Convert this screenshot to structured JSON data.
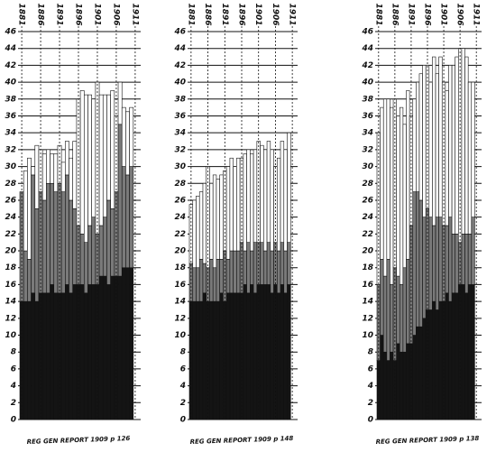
{
  "chart_data": [
    {
      "type": "bar",
      "stacked": true,
      "caption": "REG GEN REPORT 1909 p 126",
      "categories": [
        "1881",
        null,
        null,
        null,
        null,
        "1886",
        null,
        null,
        null,
        null,
        "1891",
        null,
        null,
        null,
        null,
        "1896",
        null,
        null,
        null,
        null,
        "1901",
        null,
        null,
        null,
        null,
        "1906",
        null,
        null,
        null,
        null,
        "1911"
      ],
      "ylim": [
        0,
        46
      ],
      "yticks": [
        0,
        2,
        4,
        6,
        8,
        10,
        12,
        14,
        16,
        18,
        20,
        22,
        24,
        26,
        28,
        30,
        32,
        34,
        36,
        38,
        40,
        42,
        44,
        46
      ],
      "grid": true,
      "series": [
        {
          "color": "#141414",
          "values": [
            14,
            14,
            14,
            15,
            14,
            15,
            15,
            15,
            16,
            15,
            15,
            15,
            16,
            15,
            16,
            16,
            16,
            15,
            16,
            16,
            16,
            17,
            17,
            16,
            17,
            17,
            17,
            18,
            18,
            18,
            null
          ]
        },
        {
          "color": "#7a7a7a",
          "values": [
            13,
            6,
            5,
            14,
            11,
            12,
            11,
            13,
            12,
            12,
            13,
            12,
            13,
            11,
            9,
            7,
            6,
            6,
            7,
            8,
            6,
            6,
            7,
            10,
            8,
            10,
            18,
            12,
            11,
            12,
            null
          ]
        },
        {
          "color": "#ffffff",
          "values": [
            0,
            9.5,
            12,
            1,
            7.5,
            5,
            5.5,
            4,
            3.5,
            4.5,
            4.5,
            3.5,
            4,
            5,
            8,
            15,
            17,
            17.5,
            15.5,
            14,
            18,
            15.5,
            14.5,
            12.5,
            14,
            9,
            5,
            7,
            7.5,
            7,
            null
          ]
        }
      ]
    },
    {
      "type": "bar",
      "stacked": true,
      "caption": "REG GEN REPORT 1909 p 148",
      "categories": [
        "1881",
        null,
        null,
        null,
        null,
        "1886",
        null,
        null,
        null,
        null,
        "1891",
        null,
        null,
        null,
        null,
        "1896",
        null,
        null,
        null,
        null,
        "1901",
        null,
        null,
        null,
        null,
        "1906",
        null,
        null,
        null,
        null,
        "1911"
      ],
      "ylim": [
        0,
        46
      ],
      "yticks": [
        0,
        2,
        4,
        6,
        8,
        10,
        12,
        14,
        16,
        18,
        20,
        22,
        24,
        26,
        28,
        30,
        32,
        34,
        36,
        38,
        40,
        42,
        44,
        46
      ],
      "grid": true,
      "series": [
        {
          "color": "#141414",
          "values": [
            14,
            14,
            14,
            14,
            15,
            14,
            14,
            14,
            14,
            15,
            14,
            15,
            15,
            15,
            15,
            15,
            16,
            15,
            16,
            15,
            16,
            16,
            16,
            16,
            15,
            16,
            15,
            16,
            15,
            16,
            null
          ]
        },
        {
          "color": "#7a7a7a",
          "values": [
            4.5,
            4,
            4,
            5,
            3.5,
            4,
            5,
            4,
            5,
            4,
            6,
            4,
            5,
            5,
            5,
            6,
            4,
            6,
            4,
            6,
            5,
            5,
            4,
            5,
            5,
            5,
            5,
            5,
            5,
            5,
            null
          ]
        },
        {
          "color": "#ffffff",
          "values": [
            7,
            8,
            8.5,
            8,
            9.5,
            12,
            9,
            11,
            9.5,
            10,
            9.5,
            11,
            11,
            10,
            11,
            10,
            11.5,
            11,
            11.5,
            11,
            12,
            11.5,
            12,
            12,
            12,
            9,
            11,
            12,
            12,
            13,
            null
          ]
        }
      ]
    },
    {
      "type": "bar",
      "stacked": true,
      "caption": "REG GEN REPORT 1909 p 138",
      "categories": [
        "1881",
        null,
        null,
        null,
        null,
        "1886",
        null,
        null,
        null,
        null,
        "1891",
        null,
        null,
        null,
        null,
        "1896",
        null,
        null,
        null,
        null,
        "1901",
        null,
        null,
        null,
        null,
        "1906",
        null,
        null,
        null,
        null,
        "1911"
      ],
      "ylim": [
        0,
        46
      ],
      "yticks": [
        0,
        2,
        4,
        6,
        8,
        10,
        12,
        14,
        16,
        18,
        20,
        22,
        24,
        26,
        28,
        30,
        32,
        34,
        36,
        38,
        40,
        42,
        44,
        46
      ],
      "grid": true,
      "series": [
        {
          "color": "#141414",
          "values": [
            7,
            10,
            8,
            7,
            8,
            7,
            9,
            8,
            8,
            9,
            9,
            10,
            11,
            11,
            12,
            13,
            13,
            14,
            13,
            14,
            14,
            15,
            14,
            15,
            15,
            16,
            16,
            15,
            16,
            16,
            null
          ]
        },
        {
          "color": "#7a7a7a",
          "values": [
            9,
            9,
            9,
            12,
            8,
            11,
            8,
            8,
            10,
            10,
            14,
            17,
            16,
            15,
            12,
            12,
            11,
            9,
            11,
            10,
            9,
            8,
            10,
            7,
            7,
            5,
            6,
            7,
            6,
            8,
            null
          ]
        },
        {
          "color": "#ffffff",
          "values": [
            18,
            18,
            21,
            19,
            21,
            20,
            19,
            21,
            17,
            20,
            13,
            11,
            13,
            15,
            18,
            17,
            16,
            20,
            17,
            19,
            17,
            16,
            18,
            20,
            21,
            23,
            22,
            21,
            18,
            16,
            null
          ]
        }
      ]
    }
  ]
}
